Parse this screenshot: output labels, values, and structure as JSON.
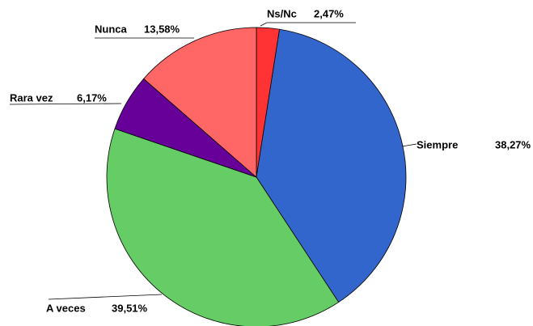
{
  "chart_data": {
    "type": "pie",
    "categories": [
      "Ns/Nc",
      "Siempre",
      "A veces",
      "Rara vez",
      "Nunca"
    ],
    "values": [
      2.47,
      38.27,
      39.51,
      6.17,
      13.58
    ],
    "value_labels": [
      "2,47%",
      "38,27%",
      "39,51%",
      "6,17%",
      "13,58%"
    ],
    "colors": [
      "#ff3333",
      "#3366cc",
      "#66cc66",
      "#660099",
      "#ff6666"
    ]
  }
}
